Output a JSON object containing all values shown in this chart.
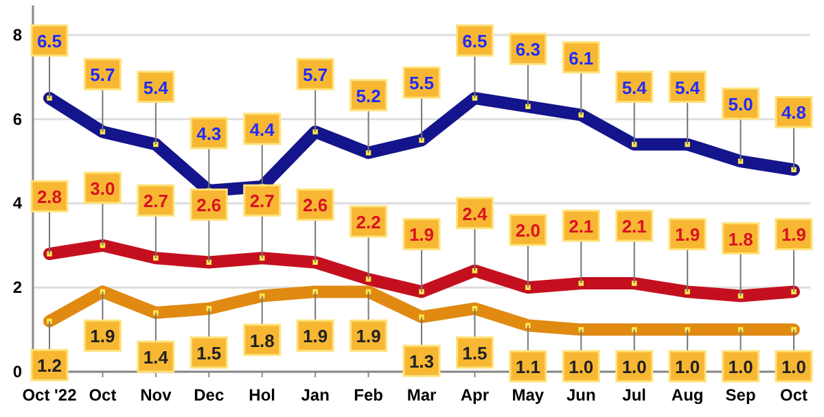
{
  "chart_data": {
    "type": "line",
    "categories": [
      "Oct '22",
      "Oct",
      "Nov",
      "Dec",
      "Hol",
      "Jan",
      "Feb",
      "Mar",
      "Apr",
      "May",
      "Jun",
      "Jul",
      "Aug",
      "Sep",
      "Oct"
    ],
    "series": [
      {
        "color": "#14148c",
        "values": [
          6.5,
          5.7,
          5.4,
          4.3,
          4.4,
          5.7,
          5.2,
          5.5,
          6.5,
          6.3,
          6.1,
          5.4,
          5.4,
          5.0,
          4.8
        ],
        "value_labels": [
          "6.5",
          "5.7",
          "5.4",
          "4.3",
          "4.4",
          "5.7",
          "5.2",
          "5.5",
          "6.5",
          "6.3",
          "6.1",
          "5.4",
          "5.4",
          "5.0",
          "4.8"
        ]
      },
      {
        "color": "#c4101e",
        "values": [
          2.8,
          3.0,
          2.7,
          2.6,
          2.7,
          2.6,
          2.2,
          1.9,
          2.4,
          2.0,
          2.1,
          2.1,
          1.9,
          1.8,
          1.9
        ],
        "value_labels": [
          "2.8",
          "3.0",
          "2.7",
          "2.6",
          "2.7",
          "2.6",
          "2.2",
          "1.9",
          "2.4",
          "2.0",
          "2.1",
          "2.1",
          "1.9",
          "1.8",
          "1.9"
        ]
      },
      {
        "color": "#e08a12",
        "values": [
          1.2,
          1.9,
          1.4,
          1.5,
          1.8,
          1.9,
          1.9,
          1.3,
          1.5,
          1.1,
          1.0,
          1.0,
          1.0,
          1.0,
          1.0
        ],
        "value_labels": [
          "1.2",
          "1.9",
          "1.4",
          "1.5",
          "1.8",
          "1.9",
          "1.9",
          "1.3",
          "1.5",
          "1.1",
          "1.0",
          "1.0",
          "1.0",
          "1.0",
          "1.0"
        ]
      }
    ],
    "ylim": [
      0,
      8.7
    ],
    "yticks": [
      0,
      2,
      4,
      6,
      8
    ],
    "grid": "y",
    "marker": "square"
  }
}
